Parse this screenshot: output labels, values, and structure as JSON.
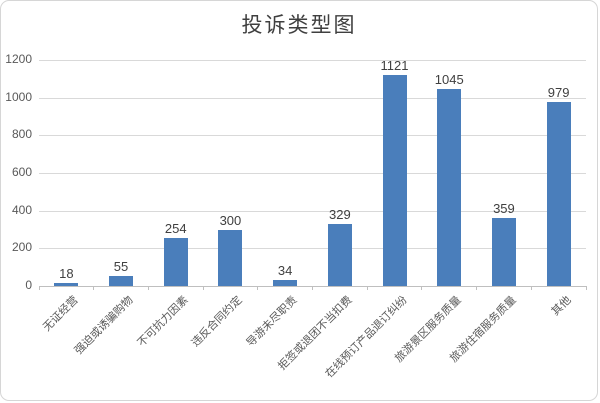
{
  "chart_data": {
    "type": "bar",
    "title": "投诉类型图",
    "categories": [
      "无证经营",
      "强迫或诱骗购物",
      "不可抗力因素",
      "违反合同约定",
      "导游未尽职责",
      "拒签或退团不当扣费",
      "在线预订产品退订纠纷",
      "旅游景区服务质量",
      "旅游住宿服务质量",
      "其他"
    ],
    "values": [
      18,
      55,
      254,
      300,
      34,
      329,
      1121,
      1045,
      359,
      979
    ],
    "xlabel": "",
    "ylabel": "",
    "ylim": [
      0,
      1200
    ],
    "yticks": [
      0,
      200,
      400,
      600,
      800,
      1000,
      1200
    ],
    "grid": true,
    "legend_position": "none",
    "data_labels_shown": true,
    "colors": {
      "bar": "#4a7ebb",
      "gridline": "#d9d9d9",
      "axis_line": "#bfbfbf",
      "value_label": "#404040",
      "tick_label": "#595959",
      "title": "#3f3f3f",
      "frame_border": "#d6d6d6",
      "background": "#ffffff"
    }
  }
}
